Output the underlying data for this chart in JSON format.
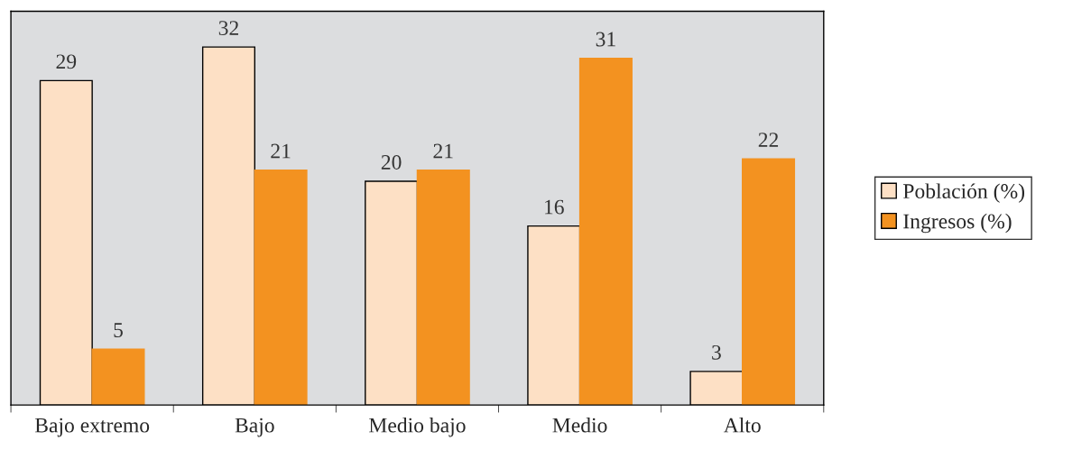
{
  "chart_data": {
    "type": "bar",
    "categories": [
      "Bajo extremo",
      "Bajo",
      "Medio bajo",
      "Medio",
      "Alto"
    ],
    "series": [
      {
        "name": "Población (%)",
        "color": "#fde0c5",
        "values": [
          29,
          32,
          20,
          16,
          3
        ]
      },
      {
        "name": "Ingresos (%)",
        "color": "#f39220",
        "values": [
          5,
          21,
          21,
          31,
          22
        ]
      }
    ],
    "data_labels": true,
    "legend": "right",
    "tick_labels": "x",
    "grid": false
  }
}
